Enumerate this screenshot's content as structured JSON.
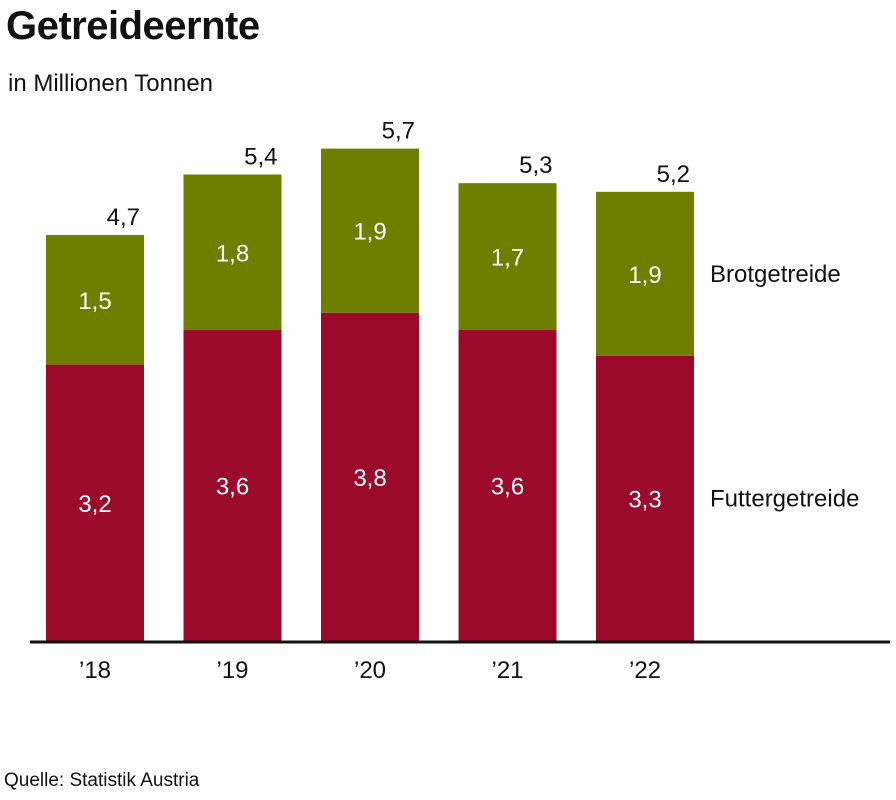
{
  "header": {
    "title": "Getreideernte",
    "subtitle": "in Millionen Tonnen"
  },
  "footer": {
    "source": "Quelle: Statistik Austria"
  },
  "colors": {
    "futtergetreide": "#9b0a2b",
    "brotgetreide": "#6e7f00",
    "axis": "#111111"
  },
  "chart_data": {
    "type": "bar",
    "stacked": true,
    "title": "Getreideernte",
    "subtitle": "in Millionen Tonnen",
    "categories": [
      "’18",
      "’19",
      "’20",
      "’21",
      "’22"
    ],
    "series": [
      {
        "name": "Futtergetreide",
        "values": [
          3.2,
          3.6,
          3.8,
          3.6,
          3.3
        ],
        "labels": [
          "3,2",
          "3,6",
          "3,8",
          "3,6",
          "3,3"
        ]
      },
      {
        "name": "Brotgetreide",
        "values": [
          1.5,
          1.8,
          1.9,
          1.7,
          1.9
        ],
        "labels": [
          "1,5",
          "1,8",
          "1,9",
          "1,7",
          "1,9"
        ]
      }
    ],
    "totals": [
      4.7,
      5.4,
      5.7,
      5.3,
      5.2
    ],
    "total_labels": [
      "4,7",
      "5,4",
      "5,7",
      "5,3",
      "5,2"
    ],
    "ylim": [
      0,
      6
    ],
    "grid": false,
    "legend": "right, labels beside last bar"
  }
}
